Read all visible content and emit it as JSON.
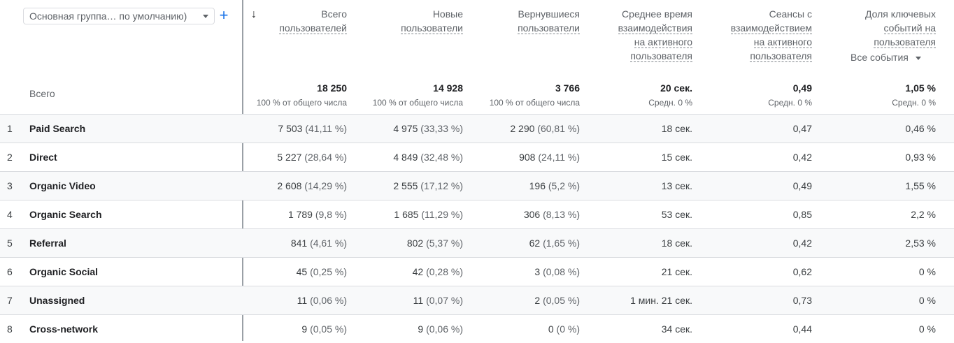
{
  "toolbar": {
    "group_selector": "Основная группа… по умолчанию)",
    "add_label": "+"
  },
  "columns": [
    {
      "lines": [
        "Всего",
        "пользователей"
      ],
      "total": "18 250",
      "total_sub": "100 % от общего числа"
    },
    {
      "lines": [
        "Новые",
        "пользователи"
      ],
      "total": "14 928",
      "total_sub": "100 % от общего числа"
    },
    {
      "lines": [
        "Вернувшиеся",
        "пользователи"
      ],
      "total": "3 766",
      "total_sub": "100 % от общего числа"
    },
    {
      "lines": [
        "Среднее время",
        "взаимодействия",
        "на активного",
        "пользователя"
      ],
      "total": "20 сек.",
      "total_sub": "Средн. 0 %"
    },
    {
      "lines": [
        "Сеансы с",
        "взаимодействием",
        "на активного",
        "пользователя"
      ],
      "total": "0,49",
      "total_sub": "Средн. 0 %"
    },
    {
      "lines": [
        "Доля ключевых",
        "событий на",
        "пользователя"
      ],
      "total": "1,05 %",
      "total_sub": "Средн. 0 %",
      "selector": "Все события"
    }
  ],
  "total_label": "Всего",
  "rows": [
    {
      "idx": "1",
      "name": "Paid Search",
      "c1": "7 503",
      "c1p": "(41,11 %)",
      "c2": "4 975",
      "c2p": "(33,33 %)",
      "c3": "2 290",
      "c3p": "(60,81 %)",
      "c4": "18 сек.",
      "c5": "0,47",
      "c6": "0,46 %"
    },
    {
      "idx": "2",
      "name": "Direct",
      "c1": "5 227",
      "c1p": "(28,64 %)",
      "c2": "4 849",
      "c2p": "(32,48 %)",
      "c3": "908",
      "c3p": "(24,11 %)",
      "c4": "15 сек.",
      "c5": "0,42",
      "c6": "0,93 %"
    },
    {
      "idx": "3",
      "name": "Organic Video",
      "c1": "2 608",
      "c1p": "(14,29 %)",
      "c2": "2 555",
      "c2p": "(17,12 %)",
      "c3": "196",
      "c3p": "(5,2 %)",
      "c4": "13 сек.",
      "c5": "0,49",
      "c6": "1,55 %"
    },
    {
      "idx": "4",
      "name": "Organic Search",
      "c1": "1 789",
      "c1p": "(9,8 %)",
      "c2": "1 685",
      "c2p": "(11,29 %)",
      "c3": "306",
      "c3p": "(8,13 %)",
      "c4": "53 сек.",
      "c5": "0,85",
      "c6": "2,2 %"
    },
    {
      "idx": "5",
      "name": "Referral",
      "c1": "841",
      "c1p": "(4,61 %)",
      "c2": "802",
      "c2p": "(5,37 %)",
      "c3": "62",
      "c3p": "(1,65 %)",
      "c4": "18 сек.",
      "c5": "0,42",
      "c6": "2,53 %"
    },
    {
      "idx": "6",
      "name": "Organic Social",
      "c1": "45",
      "c1p": "(0,25 %)",
      "c2": "42",
      "c2p": "(0,28 %)",
      "c3": "3",
      "c3p": "(0,08 %)",
      "c4": "21 сек.",
      "c5": "0,62",
      "c6": "0 %"
    },
    {
      "idx": "7",
      "name": "Unassigned",
      "c1": "11",
      "c1p": "(0,06 %)",
      "c2": "11",
      "c2p": "(0,07 %)",
      "c3": "2",
      "c3p": "(0,05 %)",
      "c4": "1 мин. 21 сек.",
      "c5": "0,73",
      "c6": "0 %"
    },
    {
      "idx": "8",
      "name": "Cross-network",
      "c1": "9",
      "c1p": "(0,05 %)",
      "c2": "9",
      "c2p": "(0,06 %)",
      "c3": "0",
      "c3p": "(0 %)",
      "c4": "34 сек.",
      "c5": "0,44",
      "c6": "0 %"
    }
  ]
}
